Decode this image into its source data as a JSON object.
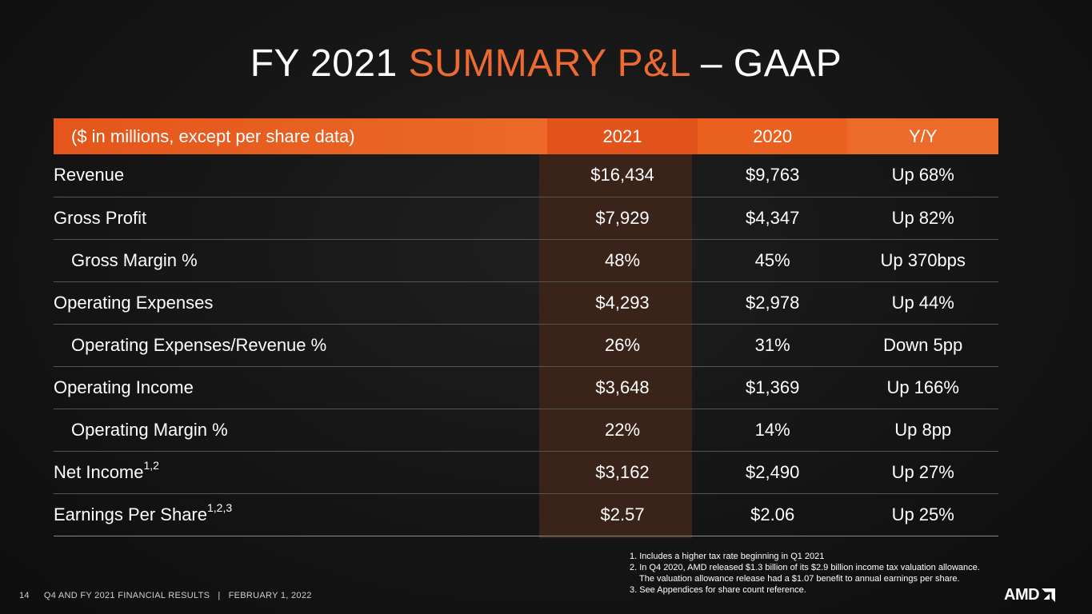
{
  "title": {
    "part1": "FY 2021 ",
    "accent": "SUMMARY P&L",
    "part2": " – GAAP"
  },
  "colors": {
    "accent": "#ed6b32",
    "header_bg": "#e9601f",
    "highlight_col": "#3a2319",
    "background": "#141414"
  },
  "table": {
    "header": [
      "($ in millions, except per share data)",
      "2021",
      "2020",
      "Y/Y"
    ],
    "rows": [
      {
        "label": "Revenue",
        "sup": "",
        "v2021": "$16,434",
        "v2020": "$9,763",
        "yy": "Up 68%"
      },
      {
        "label": "Gross Profit",
        "sup": "",
        "v2021": "$7,929",
        "v2020": "$4,347",
        "yy": "Up 82%"
      },
      {
        "label": "Gross Margin %",
        "sup": "",
        "v2021": "48%",
        "v2020": "45%",
        "yy": "Up 370bps"
      },
      {
        "label": "Operating Expenses",
        "sup": "",
        "v2021": "$4,293",
        "v2020": "$2,978",
        "yy": "Up 44%"
      },
      {
        "label": "Operating Expenses/Revenue %",
        "sup": "",
        "v2021": "26%",
        "v2020": "31%",
        "yy": "Down 5pp"
      },
      {
        "label": "Operating Income",
        "sup": "",
        "v2021": "$3,648",
        "v2020": "$1,369",
        "yy": "Up 166%"
      },
      {
        "label": "Operating Margin %",
        "sup": "",
        "v2021": "22%",
        "v2020": "14%",
        "yy": "Up 8pp"
      },
      {
        "label": "Net Income",
        "sup": "1,2",
        "v2021": "$3,162",
        "v2020": "$2,490",
        "yy": "Up 27%"
      },
      {
        "label": "Earnings Per Share",
        "sup": "1,2,3",
        "v2021": "$2.57",
        "v2020": "$2.06",
        "yy": "Up 25%"
      }
    ]
  },
  "notes": [
    "1. Includes a higher tax rate beginning in Q1 2021",
    "2. In Q4 2020, AMD released $1.3 billion of its $2.9 billion income tax valuation allowance.",
    "The valuation allowance release had a $1.07 benefit to annual earnings per share.",
    "3. See Appendices for share count reference."
  ],
  "footer": {
    "page": "14",
    "text": "Q4 AND FY 2021 FINANCIAL RESULTS   |   FEBRUARY 1, 2022"
  },
  "logo": {
    "text": "AMD",
    "icon": "amd-arrow-icon"
  }
}
